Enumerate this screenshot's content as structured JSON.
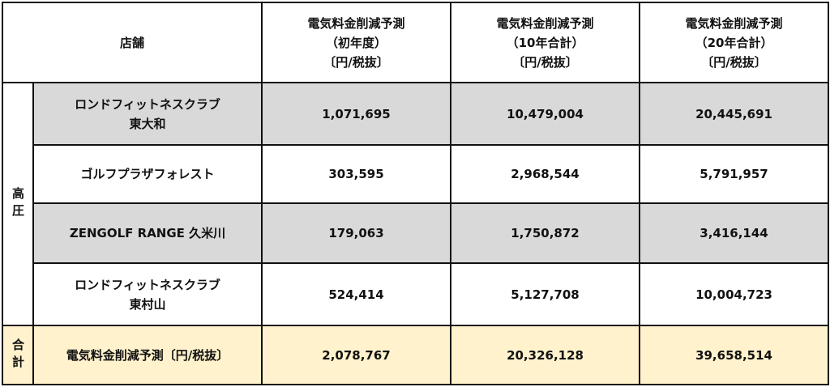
{
  "header": {
    "store_label": "店舗",
    "columns": [
      {
        "line1": "電気料金削減予測",
        "line2": "（初年度）",
        "line3": "〔円/税抜〕"
      },
      {
        "line1": "電気料金削減予測",
        "line2": "（10年合計）",
        "line3": "〔円/税抜〕"
      },
      {
        "line1": "電気料金削減予測",
        "line2": "（20年合計）",
        "line3": "〔円/税抜〕"
      }
    ]
  },
  "group_label": "高圧",
  "rows": [
    {
      "name_line1": "ロンドフィットネスクラブ",
      "name_line2": "東大和",
      "values": [
        "1,071,695",
        "10,479,004",
        "20,445,691"
      ]
    },
    {
      "name_line1": "ゴルフプラザフォレスト",
      "name_line2": "",
      "values": [
        "303,595",
        "2,968,544",
        "5,791,957"
      ]
    },
    {
      "name_line1": "ZENGOLF RANGE 久米川",
      "name_line2": "",
      "values": [
        "179,063",
        "1,750,872",
        "3,416,144"
      ]
    },
    {
      "name_line1": "ロンドフィットネスクラブ",
      "name_line2": "東村山",
      "values": [
        "524,414",
        "5,127,708",
        "10,004,723"
      ]
    }
  ],
  "total": {
    "group_label": "合計",
    "label": "電気料金削減予測〔円/税抜〕",
    "values": [
      "2,078,767",
      "20,326,128",
      "39,658,514"
    ]
  }
}
